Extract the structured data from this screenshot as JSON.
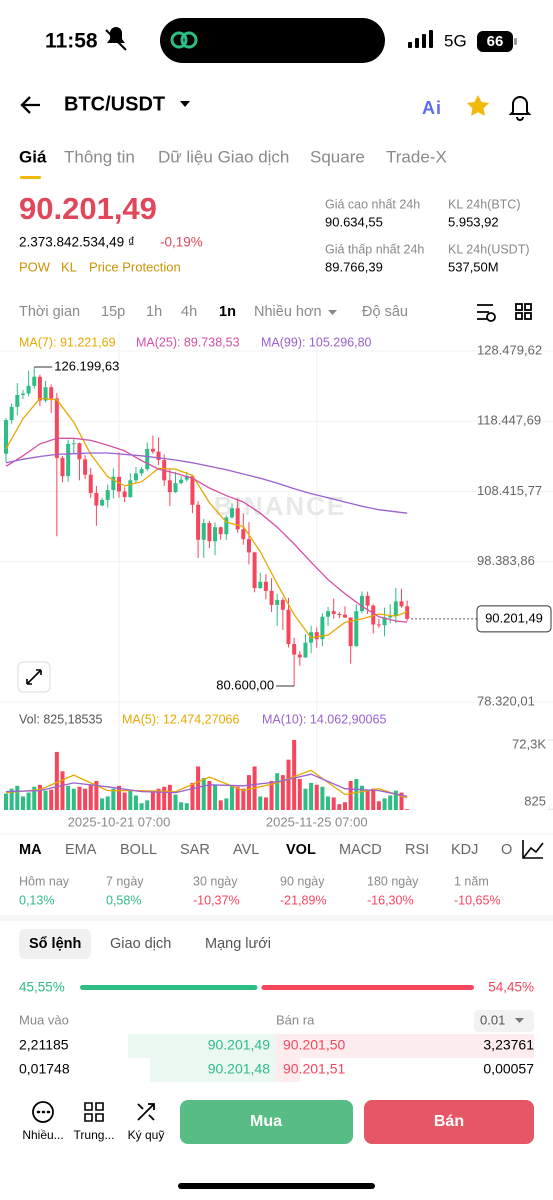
{
  "status": {
    "time": "11:58",
    "network": "5G",
    "battery": "66"
  },
  "header": {
    "pair": "BTC/USDT"
  },
  "tabs": [
    "Giá",
    "Thông tin",
    "Dữ liệu Giao dịch",
    "Square",
    "Trade-X"
  ],
  "price": {
    "last": "90.201,49",
    "fiat": "2.373.842.534,49 ₫",
    "change": "-0,19%",
    "tags": [
      "POW",
      "KL",
      "Price Protection"
    ],
    "stats": [
      {
        "label": "Giá cao nhất 24h",
        "value": "90.634,55"
      },
      {
        "label": "KL 24h(BTC)",
        "value": "5.953,92"
      },
      {
        "label": "Giá thấp nhất 24h",
        "value": "89.766,39"
      },
      {
        "label": "KL 24h(USDT)",
        "value": "537,50M"
      }
    ]
  },
  "intervals": [
    "Thời gian",
    "15p",
    "1h",
    "4h",
    "1n",
    "Nhiều hơn",
    "Độ sâu"
  ],
  "chart_data": {
    "type": "candlestick",
    "watermark": "BINANCE",
    "categories": [
      null,
      null,
      null,
      null,
      null,
      null,
      null,
      null,
      null,
      null,
      null,
      null,
      null,
      null,
      null,
      null,
      null,
      null,
      null,
      null,
      "2025-10-21 07:00",
      null,
      null,
      null,
      null,
      null,
      null,
      null,
      null,
      null,
      null,
      null,
      null,
      null,
      null,
      null,
      null,
      null,
      null,
      null,
      null,
      null,
      null,
      null,
      null,
      null,
      null,
      null,
      null,
      null,
      null,
      null,
      null,
      null,
      null,
      "2025-11-25 07:00",
      null,
      null,
      null,
      null,
      null,
      null,
      null,
      null,
      null,
      null,
      null,
      null,
      null,
      null,
      null,
      null
    ],
    "candles": [
      [
        113800,
        118900,
        112600,
        118600
      ],
      [
        118600,
        121000,
        118100,
        120500
      ],
      [
        120500,
        123900,
        119300,
        122200
      ],
      [
        122200,
        122900,
        121600,
        122400
      ],
      [
        122400,
        125700,
        122000,
        123500
      ],
      [
        123500,
        126199.63,
        123100,
        124800
      ],
      [
        124800,
        125100,
        120600,
        121400
      ],
      [
        121400,
        124200,
        121100,
        123300
      ],
      [
        123300,
        123700,
        119600,
        121700
      ],
      [
        121700,
        122500,
        102000,
        113200
      ],
      [
        113200,
        113500,
        109700,
        110600
      ],
      [
        110600,
        115800,
        109800,
        115200
      ],
      [
        115200,
        116000,
        113800,
        115300
      ],
      [
        115300,
        115400,
        110000,
        113000
      ],
      [
        113000,
        113600,
        110200,
        110800
      ],
      [
        110800,
        111800,
        107500,
        108200
      ],
      [
        108200,
        109200,
        103500,
        106400
      ],
      [
        106400,
        107500,
        106300,
        107200
      ],
      [
        107200,
        109400,
        106100,
        108600
      ],
      [
        108600,
        111700,
        107400,
        110500
      ],
      [
        110500,
        114000,
        107500,
        108400
      ],
      [
        108400,
        109000,
        106900,
        107600
      ],
      [
        107600,
        111000,
        107500,
        110000
      ],
      [
        110000,
        111900,
        109600,
        111000
      ],
      [
        111000,
        111900,
        110600,
        111600
      ],
      [
        111600,
        115400,
        111300,
        114500
      ],
      [
        114500,
        116400,
        113800,
        114100
      ],
      [
        114100,
        116100,
        112200,
        112900
      ],
      [
        112900,
        113700,
        109200,
        110000
      ],
      [
        110000,
        111700,
        106300,
        108300
      ],
      [
        108300,
        111200,
        108200,
        109600
      ],
      [
        109600,
        110600,
        109400,
        110100
      ],
      [
        110100,
        111200,
        109800,
        110600
      ],
      [
        110600,
        110800,
        105300,
        106500
      ],
      [
        106500,
        107000,
        98900,
        101500
      ],
      [
        101500,
        104500,
        98900,
        103900
      ],
      [
        103900,
        104200,
        100300,
        101300
      ],
      [
        101300,
        104000,
        99300,
        103300
      ],
      [
        103300,
        103400,
        101500,
        102300
      ],
      [
        102300,
        105000,
        101500,
        104700
      ],
      [
        104700,
        106700,
        104500,
        106000
      ],
      [
        106000,
        107400,
        102500,
        103000
      ],
      [
        103000,
        105300,
        100800,
        101600
      ],
      [
        101600,
        104000,
        98000,
        99700
      ],
      [
        99700,
        99800,
        94000,
        94600
      ],
      [
        94600,
        96800,
        94500,
        95500
      ],
      [
        95500,
        96600,
        93000,
        94200
      ],
      [
        94200,
        96000,
        91200,
        92200
      ],
      [
        92200,
        93800,
        89200,
        92900
      ],
      [
        92900,
        93200,
        88600,
        91500
      ],
      [
        91500,
        93200,
        86100,
        86600
      ],
      [
        86600,
        87500,
        80600,
        85100
      ],
      [
        85100,
        85600,
        83500,
        84700
      ],
      [
        84700,
        88000,
        84600,
        86800
      ],
      [
        86800,
        89200,
        85300,
        88300
      ],
      [
        88300,
        89000,
        86100,
        87300
      ],
      [
        87300,
        91000,
        86300,
        90500
      ],
      [
        90500,
        91900,
        89200,
        91300
      ],
      [
        91300,
        93100,
        90200,
        90900
      ],
      [
        90900,
        91200,
        90300,
        90800
      ],
      [
        90800,
        92000,
        90300,
        90400
      ],
      [
        90400,
        90400,
        83800,
        86300
      ],
      [
        86300,
        92300,
        86200,
        91300
      ],
      [
        91300,
        94100,
        91000,
        93500
      ],
      [
        93500,
        94100,
        90900,
        92100
      ],
      [
        92100,
        92300,
        88100,
        89400
      ],
      [
        89400,
        90200,
        88900,
        89300
      ],
      [
        89300,
        91800,
        87700,
        90400
      ],
      [
        90400,
        92300,
        89600,
        90600
      ],
      [
        90600,
        94600,
        89600,
        92700
      ],
      [
        92700,
        94500,
        91800,
        92000
      ],
      [
        92000,
        92800,
        89900,
        90201.49
      ]
    ],
    "up_color": "#2ebd85",
    "down_color": "#f6465d",
    "ylim": [
      78320.01,
      128479.62
    ],
    "yticks": [
      {
        "value": 128479.62,
        "label": "128.479,62"
      },
      {
        "value": 118447.69,
        "label": "118.447,69"
      },
      {
        "value": 108415.77,
        "label": "108.415,77"
      },
      {
        "value": 98383.86,
        "label": "98.383,86"
      },
      {
        "value": 78320.01,
        "label": "78.320,01"
      }
    ],
    "grid": true,
    "last_price": {
      "value": 90201.49,
      "label": "90.201,49"
    },
    "annotations": [
      {
        "value": 126199.63,
        "label": "126.199,63"
      },
      {
        "value": 80600,
        "label": "80.600,00"
      }
    ],
    "series": [
      {
        "name": "MA(7): 91.221,69",
        "color": "#e8a800",
        "x": [
          0,
          3,
          6,
          9,
          12,
          15,
          18,
          21,
          24,
          27,
          30,
          33,
          36,
          39,
          42,
          45,
          48,
          51,
          54,
          57,
          60,
          63,
          66,
          69,
          71
        ],
        "values": [
          114500,
          118800,
          121700,
          121500,
          118300,
          113700,
          110500,
          109200,
          109800,
          111700,
          111600,
          110700,
          106800,
          104000,
          103400,
          99800,
          95200,
          90800,
          87500,
          87900,
          89700,
          90200,
          90900,
          90600,
          91221.69
        ]
      },
      {
        "name": "MA(25): 89.738,53",
        "color": "#d64fa6",
        "x": [
          0,
          3,
          6,
          9,
          12,
          15,
          18,
          21,
          24,
          27,
          30,
          33,
          36,
          39,
          42,
          45,
          48,
          51,
          54,
          57,
          60,
          63,
          66,
          69,
          71
        ],
        "values": [
          112000,
          113500,
          115200,
          116000,
          116000,
          115700,
          115000,
          114200,
          112800,
          111600,
          111000,
          110300,
          108900,
          107800,
          106900,
          105300,
          103300,
          100900,
          98300,
          95800,
          93800,
          92000,
          90500,
          89900,
          89738.53
        ]
      },
      {
        "name": "MA(99): 105.296,80",
        "color": "#9b5fd0",
        "x": [
          0,
          3,
          6,
          9,
          12,
          15,
          18,
          21,
          24,
          27,
          30,
          33,
          36,
          39,
          42,
          45,
          48,
          51,
          54,
          57,
          60,
          63,
          66,
          69,
          71
        ],
        "values": [
          112500,
          113000,
          113400,
          113700,
          113800,
          113900,
          113900,
          113700,
          113500,
          113200,
          112900,
          112500,
          112000,
          111500,
          110900,
          110300,
          109600,
          108800,
          108100,
          107500,
          106900,
          106300,
          105800,
          105500,
          105296.8
        ]
      }
    ],
    "volume": {
      "title": "Vol: 825,18535",
      "values": [
        17000,
        22000,
        25000,
        14000,
        18000,
        24000,
        26000,
        20000,
        21000,
        60000,
        40000,
        25000,
        22000,
        24000,
        22000,
        26000,
        30000,
        12000,
        14000,
        22000,
        25000,
        18000,
        20000,
        15000,
        7000,
        10000,
        20000,
        22000,
        24000,
        26000,
        16000,
        8000,
        7000,
        28000,
        45000,
        33000,
        30000,
        26000,
        10000,
        12000,
        25000,
        24000,
        22000,
        36000,
        45000,
        14000,
        13000,
        30000,
        38000,
        36000,
        52000,
        72300,
        32000,
        22000,
        28000,
        26000,
        24000,
        14000,
        13000,
        6000,
        8000,
        30000,
        32000,
        25000,
        20000,
        22000,
        9000,
        12000,
        15000,
        20000,
        18000,
        825.18535
      ],
      "ylim": [
        0,
        72300
      ],
      "yticks": [
        {
          "value": 72300,
          "label": "72,3K"
        },
        825
      ],
      "series": [
        {
          "name": "MA(5): 12.474,27066",
          "color": "#e8a800",
          "x": [
            0,
            6,
            12,
            18,
            24,
            30,
            36,
            42,
            48,
            54,
            60,
            66,
            71
          ],
          "values": [
            18000,
            21000,
            36000,
            20000,
            20000,
            19000,
            34000,
            20000,
            28000,
            41000,
            16000,
            22000,
            12474.27066
          ]
        },
        {
          "name": "MA(10): 14.062,90065",
          "color": "#9b5fd0",
          "x": [
            0,
            6,
            12,
            18,
            24,
            30,
            36,
            42,
            48,
            54,
            60,
            66,
            71
          ],
          "values": [
            19000,
            20000,
            28000,
            24000,
            19000,
            18000,
            26000,
            25000,
            29000,
            37000,
            22000,
            20000,
            14062.90065
          ]
        }
      ]
    }
  },
  "indicators": [
    "MA",
    "EMA",
    "BOLL",
    "SAR",
    "AVL",
    "VOL",
    "MACD",
    "RSI",
    "KDJ",
    "O"
  ],
  "performance": [
    {
      "label": "Hôm nay",
      "value": "0,13%"
    },
    {
      "label": "7 ngày",
      "value": "0,58%"
    },
    {
      "label": "30 ngày",
      "value": "-10,37%"
    },
    {
      "label": "90 ngày",
      "value": "-21,89%"
    },
    {
      "label": "180 ngày",
      "value": "-16,30%"
    },
    {
      "label": "1 năm",
      "value": "-10,65%"
    }
  ],
  "orderbook": {
    "tabs": [
      "Sổ lệnh",
      "Giao dịch",
      "Mạng lưới"
    ],
    "buy_ratio": {
      "value": 45.55,
      "label": "45,55%"
    },
    "sell_ratio": {
      "value": 54.45,
      "label": "54,45%"
    },
    "buy_header": "Mua vào",
    "sell_header": "Bán ra",
    "step": "0.01",
    "rows": [
      [
        "2,21185",
        "90.201,49",
        "90.201,50",
        "3,23761"
      ],
      [
        "0,01748",
        "90.201,48",
        "90.201,51",
        "0,00057"
      ]
    ]
  },
  "bottom": {
    "actions": [
      "Nhiều...",
      "Trung...",
      "Ký quỹ"
    ],
    "buy": "Mua",
    "sell": "Bán"
  }
}
